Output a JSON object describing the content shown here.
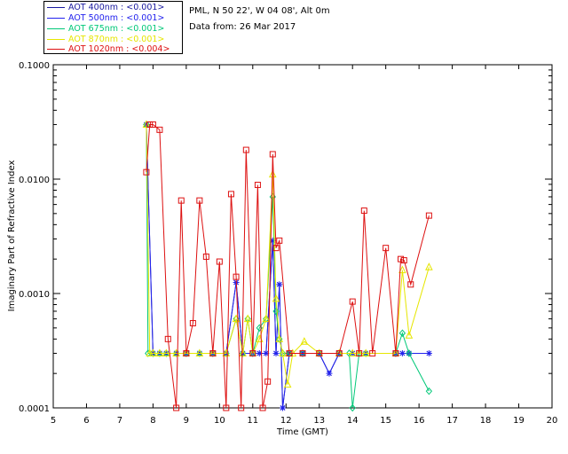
{
  "info": {
    "location": "PML, N 50 22', W 04 08', Alt 0m",
    "date": "Data from: 26 Mar 2017"
  },
  "legend": [
    {
      "label": "AOT  400nm : <0.001>",
      "color": "#1a1aa0"
    },
    {
      "label": "AOT  500nm : <0.001>",
      "color": "#2222ee"
    },
    {
      "label": "AOT  675nm : <0.001>",
      "color": "#00c878"
    },
    {
      "label": "AOT  870nm : <0.001>",
      "color": "#e6e600"
    },
    {
      "label": "AOT 1020nm : <0.004>",
      "color": "#dd1111"
    }
  ],
  "chart_data": {
    "type": "line",
    "title": "",
    "xlabel": "Time (GMT)",
    "ylabel": "Imaginary Part of Refractive Index",
    "xlim": [
      5,
      20
    ],
    "ylim": [
      0.0001,
      0.1
    ],
    "yscale": "log",
    "xticks": [
      "5",
      "6",
      "7",
      "8",
      "9",
      "10",
      "11",
      "12",
      "13",
      "14",
      "15",
      "16",
      "17",
      "18",
      "19",
      "20"
    ],
    "yticks": [
      "0.0001",
      "0.0010",
      "0.0100",
      "0.1000"
    ],
    "series": [
      {
        "name": "AOT 400nm",
        "color": "#1a1aa0",
        "marker": "x",
        "points": [
          [
            7.8,
            0.03
          ],
          [
            8.0,
            0.0003
          ],
          [
            8.2,
            0.0003
          ],
          [
            8.4,
            0.0003
          ],
          [
            8.7,
            0.0003
          ],
          [
            9.0,
            0.0003
          ],
          [
            9.4,
            0.0003
          ],
          [
            9.8,
            0.0003
          ],
          [
            10.2,
            0.0003
          ],
          [
            10.5,
            0.00125
          ],
          [
            10.7,
            0.0003
          ],
          [
            11.0,
            0.0003
          ],
          [
            11.2,
            0.0003
          ],
          [
            11.4,
            0.0003
          ],
          [
            11.6,
            0.0029
          ],
          [
            11.7,
            0.0003
          ],
          [
            11.8,
            0.0012
          ],
          [
            11.9,
            0.0001
          ],
          [
            12.1,
            0.0003
          ],
          [
            12.5,
            0.0003
          ],
          [
            13.0,
            0.0003
          ],
          [
            13.3,
            0.0002
          ],
          [
            13.6,
            0.0003
          ],
          [
            14.0,
            0.0003
          ],
          [
            14.4,
            0.0003
          ],
          [
            15.3,
            0.0003
          ],
          [
            15.5,
            0.0003
          ],
          [
            15.7,
            0.0003
          ],
          [
            16.3,
            0.0003
          ]
        ]
      },
      {
        "name": "AOT 500nm",
        "color": "#2222ee",
        "marker": "*",
        "points": [
          [
            7.8,
            0.03
          ],
          [
            8.0,
            0.0003
          ],
          [
            8.2,
            0.0003
          ],
          [
            8.4,
            0.0003
          ],
          [
            8.7,
            0.0003
          ],
          [
            9.0,
            0.0003
          ],
          [
            9.4,
            0.0003
          ],
          [
            9.8,
            0.0003
          ],
          [
            10.2,
            0.0003
          ],
          [
            10.5,
            0.00125
          ],
          [
            10.7,
            0.0003
          ],
          [
            11.0,
            0.0003
          ],
          [
            11.2,
            0.0003
          ],
          [
            11.4,
            0.0003
          ],
          [
            11.6,
            0.0029
          ],
          [
            11.7,
            0.0003
          ],
          [
            11.8,
            0.0012
          ],
          [
            11.9,
            0.0001
          ],
          [
            12.1,
            0.0003
          ],
          [
            12.5,
            0.0003
          ],
          [
            13.0,
            0.0003
          ],
          [
            13.3,
            0.0002
          ],
          [
            13.6,
            0.0003
          ],
          [
            14.0,
            0.0003
          ],
          [
            14.4,
            0.0003
          ],
          [
            15.3,
            0.0003
          ],
          [
            15.5,
            0.0003
          ],
          [
            15.7,
            0.0003
          ],
          [
            16.3,
            0.0003
          ]
        ]
      },
      {
        "name": "AOT 675nm",
        "color": "#00c878",
        "marker": "diamond",
        "points": [
          [
            7.8,
            0.03
          ],
          [
            7.85,
            0.0003
          ],
          [
            8.0,
            0.0003
          ],
          [
            8.2,
            0.0003
          ],
          [
            8.4,
            0.0003
          ],
          [
            8.7,
            0.0003
          ],
          [
            9.0,
            0.0003
          ],
          [
            9.4,
            0.0003
          ],
          [
            9.8,
            0.0003
          ],
          [
            10.2,
            0.0003
          ],
          [
            10.5,
            0.0006
          ],
          [
            10.7,
            0.0003
          ],
          [
            10.85,
            0.0006
          ],
          [
            11.0,
            0.0003
          ],
          [
            11.2,
            0.0005
          ],
          [
            11.4,
            0.0006
          ],
          [
            11.6,
            0.007
          ],
          [
            11.7,
            0.0007
          ],
          [
            11.8,
            0.0004
          ],
          [
            11.9,
            0.0003
          ],
          [
            12.1,
            0.0003
          ],
          [
            12.5,
            0.0003
          ],
          [
            13.0,
            0.0003
          ],
          [
            13.6,
            0.0003
          ],
          [
            13.9,
            0.0003
          ],
          [
            14.0,
            0.0001
          ],
          [
            14.2,
            0.0003
          ],
          [
            14.4,
            0.0003
          ],
          [
            15.3,
            0.0003
          ],
          [
            15.5,
            0.00045
          ],
          [
            15.7,
            0.0003
          ],
          [
            16.3,
            0.00014
          ]
        ]
      },
      {
        "name": "AOT 870nm",
        "color": "#e6e600",
        "marker": "triangle",
        "points": [
          [
            7.8,
            0.03
          ],
          [
            7.9,
            0.0003
          ],
          [
            8.0,
            0.0003
          ],
          [
            8.2,
            0.0003
          ],
          [
            8.4,
            0.0003
          ],
          [
            8.7,
            0.0003
          ],
          [
            9.0,
            0.0003
          ],
          [
            9.4,
            0.0003
          ],
          [
            9.8,
            0.0003
          ],
          [
            10.2,
            0.0003
          ],
          [
            10.5,
            0.0006
          ],
          [
            10.7,
            0.0003
          ],
          [
            10.85,
            0.0006
          ],
          [
            11.0,
            0.0003
          ],
          [
            11.2,
            0.0004
          ],
          [
            11.4,
            0.0006
          ],
          [
            11.6,
            0.011
          ],
          [
            11.7,
            0.0009
          ],
          [
            11.8,
            0.0004
          ],
          [
            11.9,
            0.0003
          ],
          [
            12.05,
            0.00016
          ],
          [
            12.2,
            0.0003
          ],
          [
            12.55,
            0.00038
          ],
          [
            13.0,
            0.0003
          ],
          [
            13.6,
            0.0003
          ],
          [
            14.0,
            0.0003
          ],
          [
            14.2,
            0.0003
          ],
          [
            14.4,
            0.0003
          ],
          [
            15.3,
            0.0003
          ],
          [
            15.5,
            0.0016
          ],
          [
            15.7,
            0.00043
          ],
          [
            16.3,
            0.0017
          ]
        ]
      },
      {
        "name": "AOT 1020nm",
        "color": "#dd1111",
        "marker": "square",
        "points": [
          [
            7.8,
            0.0115
          ],
          [
            7.9,
            0.03
          ],
          [
            8.0,
            0.03
          ],
          [
            8.2,
            0.027
          ],
          [
            8.45,
            0.0004
          ],
          [
            8.7,
            0.0001
          ],
          [
            8.85,
            0.0065
          ],
          [
            9.0,
            0.0003
          ],
          [
            9.2,
            0.00055
          ],
          [
            9.4,
            0.0065
          ],
          [
            9.6,
            0.0021
          ],
          [
            9.8,
            0.0003
          ],
          [
            10.0,
            0.0019
          ],
          [
            10.2,
            0.0001
          ],
          [
            10.35,
            0.0074
          ],
          [
            10.5,
            0.0014
          ],
          [
            10.65,
            0.0001
          ],
          [
            10.8,
            0.018
          ],
          [
            11.0,
            0.0003
          ],
          [
            11.15,
            0.0089
          ],
          [
            11.3,
            0.0001
          ],
          [
            11.45,
            0.00017
          ],
          [
            11.6,
            0.0165
          ],
          [
            11.7,
            0.0025
          ],
          [
            11.8,
            0.0029
          ],
          [
            12.1,
            0.0003
          ],
          [
            12.5,
            0.0003
          ],
          [
            13.0,
            0.0003
          ],
          [
            13.6,
            0.0003
          ],
          [
            14.0,
            0.00085
          ],
          [
            14.2,
            0.0003
          ],
          [
            14.35,
            0.0053
          ],
          [
            14.6,
            0.0003
          ],
          [
            15.0,
            0.0025
          ],
          [
            15.3,
            0.0003
          ],
          [
            15.45,
            0.002
          ],
          [
            15.55,
            0.00195
          ],
          [
            15.75,
            0.0012
          ],
          [
            16.3,
            0.0048
          ]
        ]
      }
    ]
  }
}
